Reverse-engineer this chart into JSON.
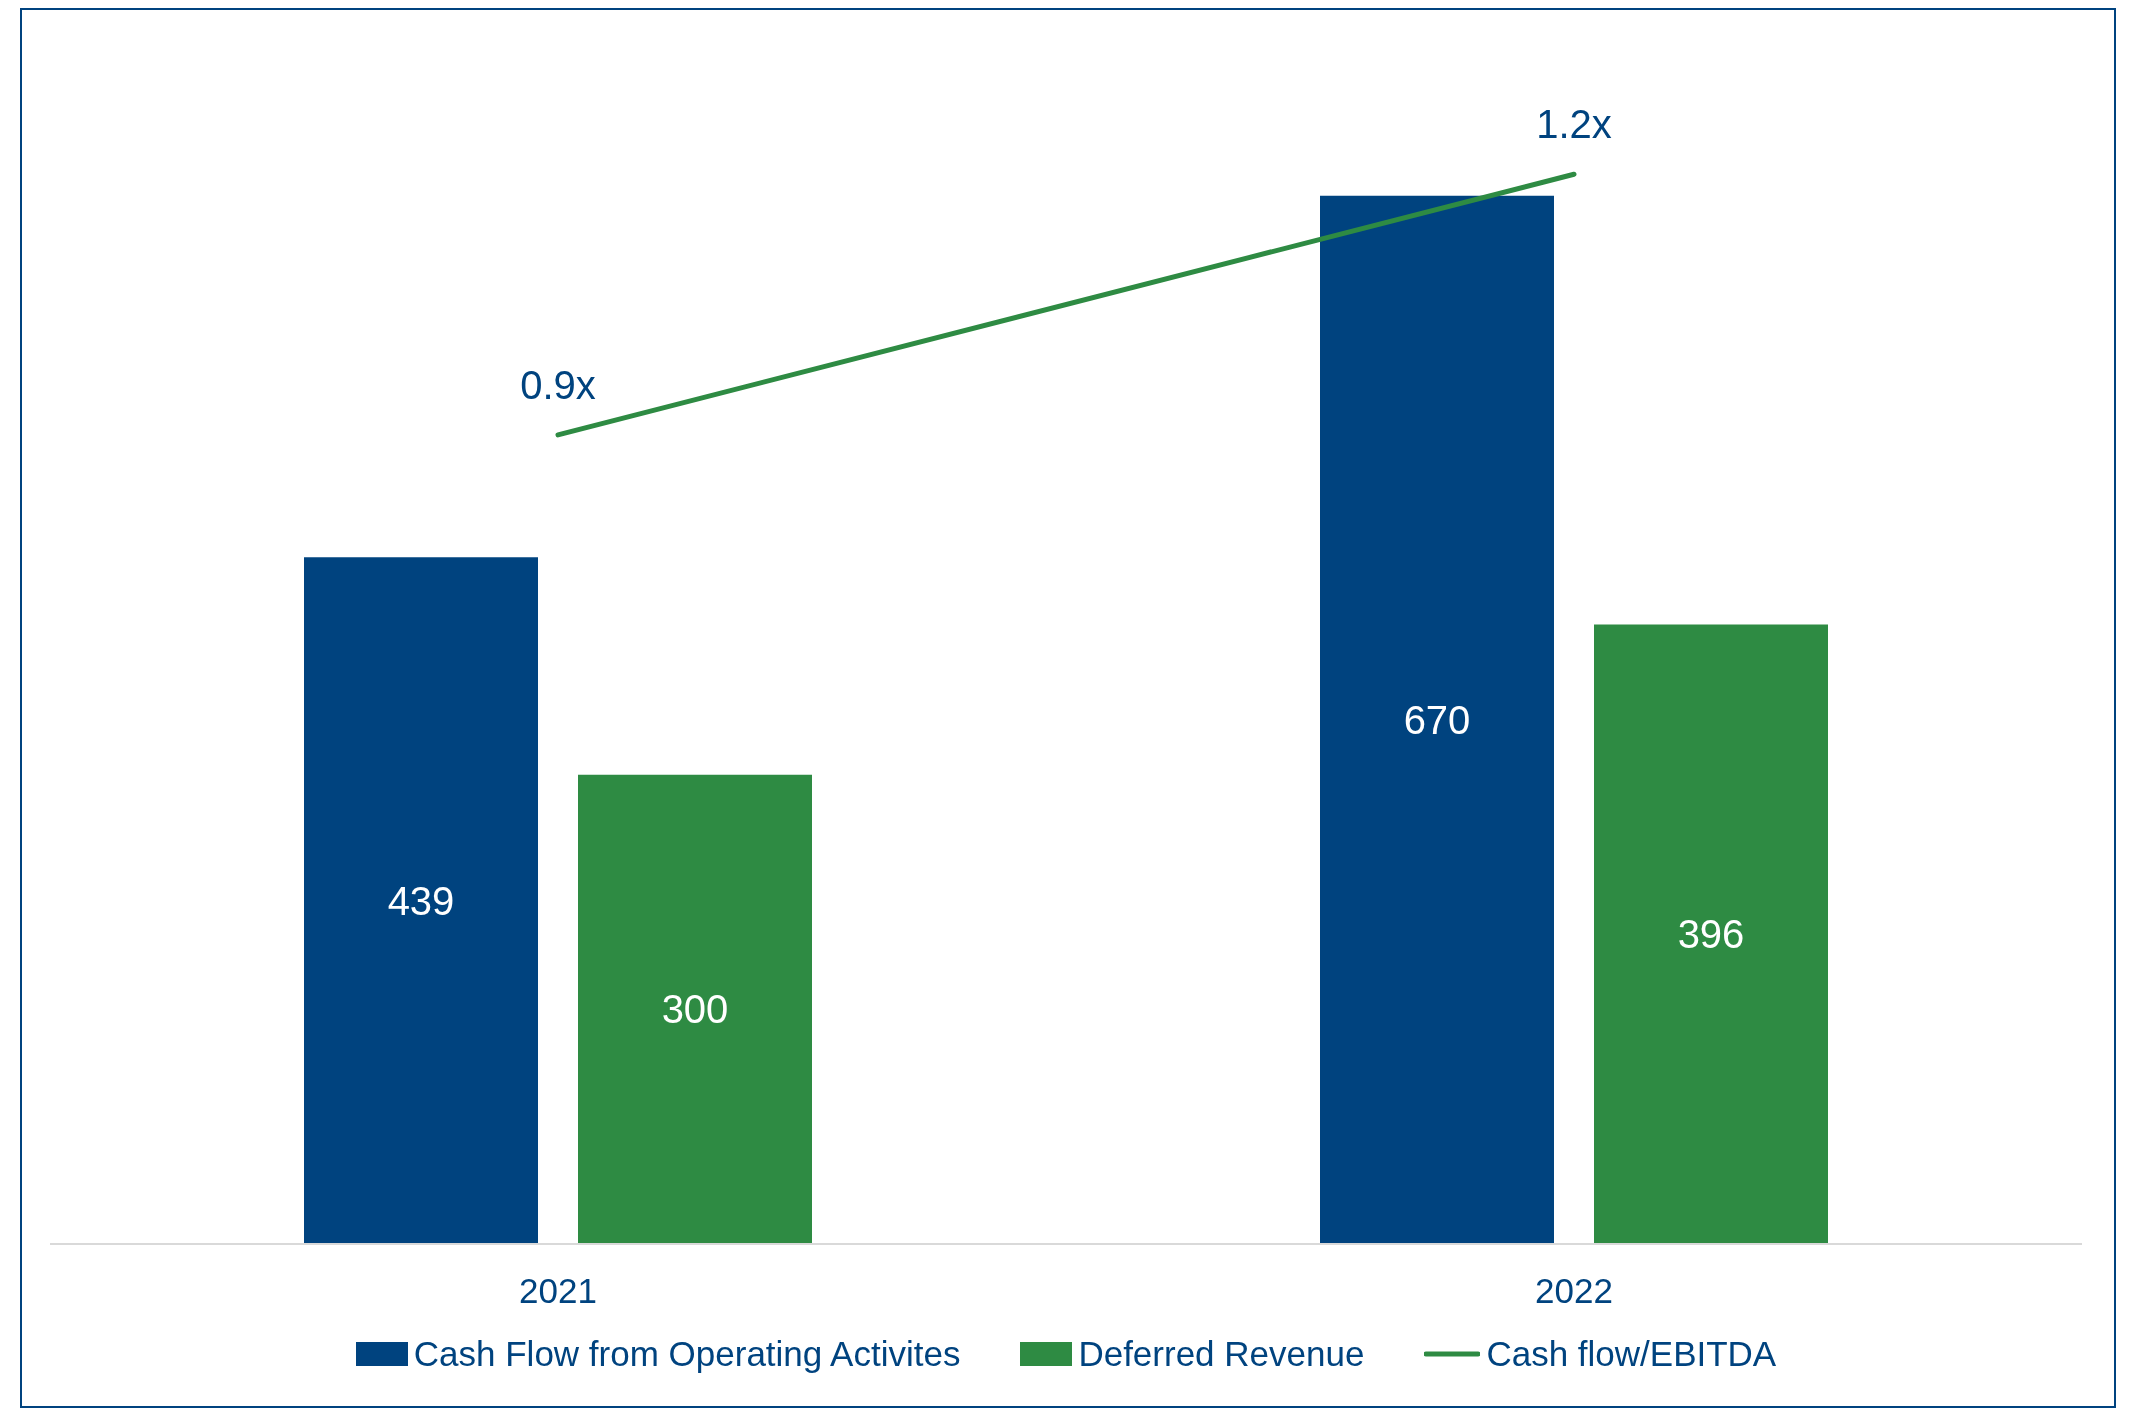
{
  "chart_data": {
    "type": "bar",
    "categories": [
      "2021",
      "2022"
    ],
    "series": [
      {
        "name": "Cash Flow from Operating Activites",
        "color": "#00437f",
        "values": [
          439,
          670
        ],
        "value_labels": [
          "439",
          "670"
        ]
      },
      {
        "name": "Deferred Revenue",
        "color": "#2e8b43",
        "values": [
          300,
          396
        ],
        "value_labels": [
          "300",
          "396"
        ]
      },
      {
        "name": "Cash flow/EBITDA",
        "type": "line",
        "axis": "y2",
        "color": "#2e8b43",
        "values": [
          0.9,
          1.2
        ],
        "value_labels": [
          "0.9x",
          "1.2x"
        ]
      }
    ],
    "tick_labels": "x",
    "legend": "bottom",
    "grid": false
  }
}
